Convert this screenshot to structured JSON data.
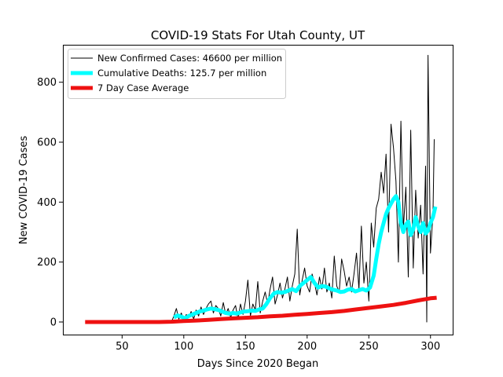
{
  "chart_data": {
    "type": "line",
    "title": "COVID-19 Stats For Utah County, UT",
    "xlabel": "Days Since 2020 Began",
    "ylabel": "New COVID-19 Cases",
    "xlim": [
      2,
      318
    ],
    "ylim": [
      -42,
      925
    ],
    "xticks": [
      50,
      100,
      150,
      200,
      250,
      300
    ],
    "yticks": [
      0,
      200,
      400,
      600,
      800
    ],
    "legend_position": "top-left",
    "series": [
      {
        "name": "New Confirmed Cases: 46600 per million",
        "color": "#000000",
        "line_width": 1,
        "x": [
          90,
          92,
          94,
          96,
          98,
          100,
          102,
          104,
          106,
          108,
          110,
          112,
          114,
          116,
          118,
          120,
          122,
          124,
          126,
          128,
          130,
          132,
          134,
          136,
          138,
          140,
          142,
          144,
          146,
          148,
          150,
          152,
          154,
          156,
          158,
          160,
          162,
          164,
          166,
          168,
          170,
          172,
          174,
          176,
          178,
          180,
          182,
          184,
          186,
          188,
          190,
          192,
          194,
          196,
          198,
          200,
          202,
          204,
          206,
          208,
          210,
          212,
          214,
          216,
          218,
          220,
          222,
          224,
          226,
          228,
          230,
          232,
          234,
          236,
          238,
          240,
          242,
          244,
          246,
          248,
          250,
          252,
          254,
          256,
          258,
          260,
          262,
          264,
          266,
          268,
          270,
          272,
          274,
          276,
          278,
          280,
          282,
          284,
          286,
          288,
          290,
          292,
          294,
          296,
          297,
          298,
          300,
          302,
          303
        ],
        "y": [
          0,
          20,
          45,
          10,
          30,
          5,
          25,
          15,
          35,
          10,
          40,
          20,
          50,
          25,
          45,
          60,
          70,
          30,
          55,
          45,
          20,
          65,
          25,
          45,
          15,
          40,
          55,
          10,
          60,
          25,
          70,
          140,
          20,
          60,
          40,
          135,
          30,
          70,
          100,
          60,
          110,
          150,
          60,
          90,
          130,
          80,
          110,
          150,
          70,
          120,
          160,
          310,
          90,
          140,
          180,
          120,
          100,
          160,
          130,
          90,
          150,
          110,
          180,
          100,
          130,
          80,
          220,
          120,
          100,
          210,
          170,
          120,
          150,
          100,
          160,
          230,
          110,
          320,
          130,
          200,
          70,
          330,
          250,
          380,
          410,
          500,
          430,
          560,
          300,
          660,
          580,
          470,
          200,
          670,
          310,
          450,
          150,
          640,
          180,
          440,
          280,
          390,
          160,
          520,
          0,
          890,
          230,
          360,
          610
        ]
      },
      {
        "name": "Cumulative Deaths: 125.7 per million",
        "color": "#00ffff",
        "line_width": 5,
        "x": [
          92,
          95,
          98,
          101,
          104,
          107,
          110,
          113,
          116,
          119,
          122,
          125,
          128,
          131,
          134,
          137,
          140,
          143,
          146,
          149,
          152,
          155,
          158,
          161,
          164,
          167,
          170,
          173,
          176,
          179,
          182,
          185,
          188,
          191,
          194,
          197,
          200,
          203,
          206,
          209,
          212,
          215,
          218,
          221,
          224,
          227,
          230,
          233,
          236,
          239,
          242,
          245,
          248,
          251,
          254,
          256,
          258,
          260,
          262,
          264,
          266,
          268,
          270,
          272,
          274,
          276,
          278,
          280,
          282,
          284,
          286,
          288,
          290,
          292,
          294,
          296,
          298,
          300,
          302,
          304
        ],
        "y": [
          15,
          22,
          18,
          12,
          20,
          25,
          30,
          35,
          38,
          42,
          45,
          43,
          40,
          35,
          30,
          28,
          30,
          28,
          32,
          35,
          36,
          38,
          37,
          42,
          45,
          60,
          80,
          95,
          100,
          98,
          100,
          105,
          110,
          103,
          120,
          130,
          140,
          150,
          130,
          115,
          120,
          118,
          112,
          108,
          105,
          100,
          102,
          108,
          110,
          102,
          106,
          110,
          105,
          115,
          155,
          210,
          260,
          300,
          330,
          360,
          380,
          395,
          410,
          420,
          400,
          330,
          300,
          325,
          335,
          290,
          310,
          350,
          320,
          300,
          330,
          295,
          305,
          330,
          350,
          385
        ]
      },
      {
        "name": "7 Day Case Average",
        "color": "#ee1111",
        "line_width": 5,
        "x": [
          20,
          40,
          60,
          80,
          90,
          100,
          110,
          120,
          130,
          140,
          150,
          160,
          170,
          180,
          190,
          200,
          210,
          220,
          230,
          240,
          250,
          260,
          270,
          280,
          290,
          300,
          305
        ],
        "y": [
          0,
          0,
          0,
          0,
          1,
          3,
          5,
          7,
          10,
          12,
          14,
          16,
          19,
          21,
          24,
          27,
          30,
          33,
          37,
          42,
          47,
          52,
          57,
          64,
          72,
          79,
          81
        ]
      }
    ]
  }
}
